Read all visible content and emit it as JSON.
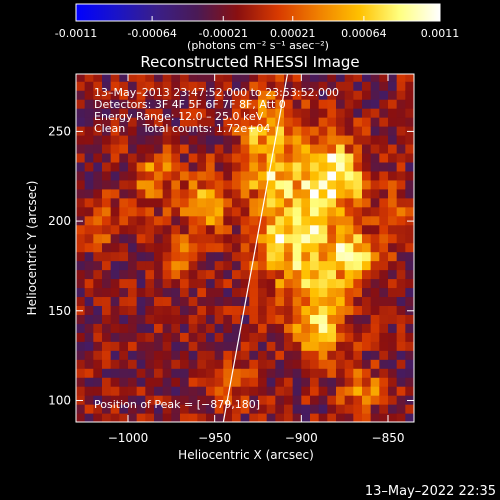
{
  "colorbar": {
    "tick_labels": [
      "-0.0011",
      "-0.00064",
      "-0.00021",
      "0.00021",
      "0.00064",
      "0.0011"
    ],
    "tick_values": [
      -0.0011,
      -0.00064,
      -0.00021,
      0.00021,
      0.00064,
      0.0011
    ],
    "range": [
      -0.0011,
      0.0011
    ],
    "unit_label": "(photons cm⁻² s⁻¹ asec⁻²)",
    "stops": [
      "#0000ff",
      "#1a14c8",
      "#3a1f88",
      "#4a1a55",
      "#8a1010",
      "#d83a00",
      "#f08000",
      "#ffc000",
      "#ffff80",
      "#ffffff"
    ]
  },
  "header": {
    "time_range": "13–May–2013 23:47:52.000 to 23:53:52.000",
    "detectors": "Detectors: 3F 4F 5F 6F 7F 8F, Att 0",
    "energy": "Energy Range: 12.0 – 25.0 keV",
    "clean": "Clean     Total counts: 1.72e+04"
  },
  "peak_label": "Position of Peak = [−879,180]",
  "timestamp": "13–May–2022 22:35",
  "chart_data": {
    "type": "heatmap",
    "title": "Reconstructed RHESSI Image",
    "xlabel": "Heliocentric X (arcsec)",
    "ylabel": "Heliocentric Y (arcsec)",
    "xlim": [
      -1030,
      -835
    ],
    "ylim": [
      88,
      282
    ],
    "x_ticks": [
      -1000,
      -950,
      -900,
      -850
    ],
    "x_tick_labels": [
      "−1000",
      "−950",
      "−900",
      "−850"
    ],
    "y_ticks": [
      100,
      150,
      200,
      250
    ],
    "y_tick_labels": [
      "100",
      "150",
      "200",
      "250"
    ],
    "peak": [
      -879,
      180
    ],
    "limb_line": [
      [
        -945,
        88
      ],
      [
        -908,
        282
      ]
    ],
    "hot_regions": [
      {
        "x": -880,
        "y": 225,
        "sx": 12,
        "sy": 15,
        "v": 0.0011
      },
      {
        "x": -905,
        "y": 190,
        "sx": 15,
        "sy": 20,
        "v": 0.0009
      },
      {
        "x": -870,
        "y": 180,
        "sx": 10,
        "sy": 10,
        "v": 0.001
      },
      {
        "x": -890,
        "y": 145,
        "sx": 12,
        "sy": 16,
        "v": 0.0008
      },
      {
        "x": -918,
        "y": 240,
        "sx": 12,
        "sy": 20,
        "v": 0.0008
      },
      {
        "x": -955,
        "y": 210,
        "sx": 10,
        "sy": 12,
        "v": 0.0006
      },
      {
        "x": -985,
        "y": 225,
        "sx": 10,
        "sy": 12,
        "v": 0.0005
      },
      {
        "x": -970,
        "y": 180,
        "sx": 8,
        "sy": 10,
        "v": 0.0004
      },
      {
        "x": -1015,
        "y": 200,
        "sx": 8,
        "sy": 10,
        "v": 0.0004
      },
      {
        "x": -865,
        "y": 105,
        "sx": 8,
        "sy": 8,
        "v": 0.0006
      },
      {
        "x": -845,
        "y": 205,
        "sx": 6,
        "sy": 10,
        "v": 0.0004
      },
      {
        "x": -940,
        "y": 110,
        "sx": 10,
        "sy": 8,
        "v": 0.0004
      }
    ]
  }
}
